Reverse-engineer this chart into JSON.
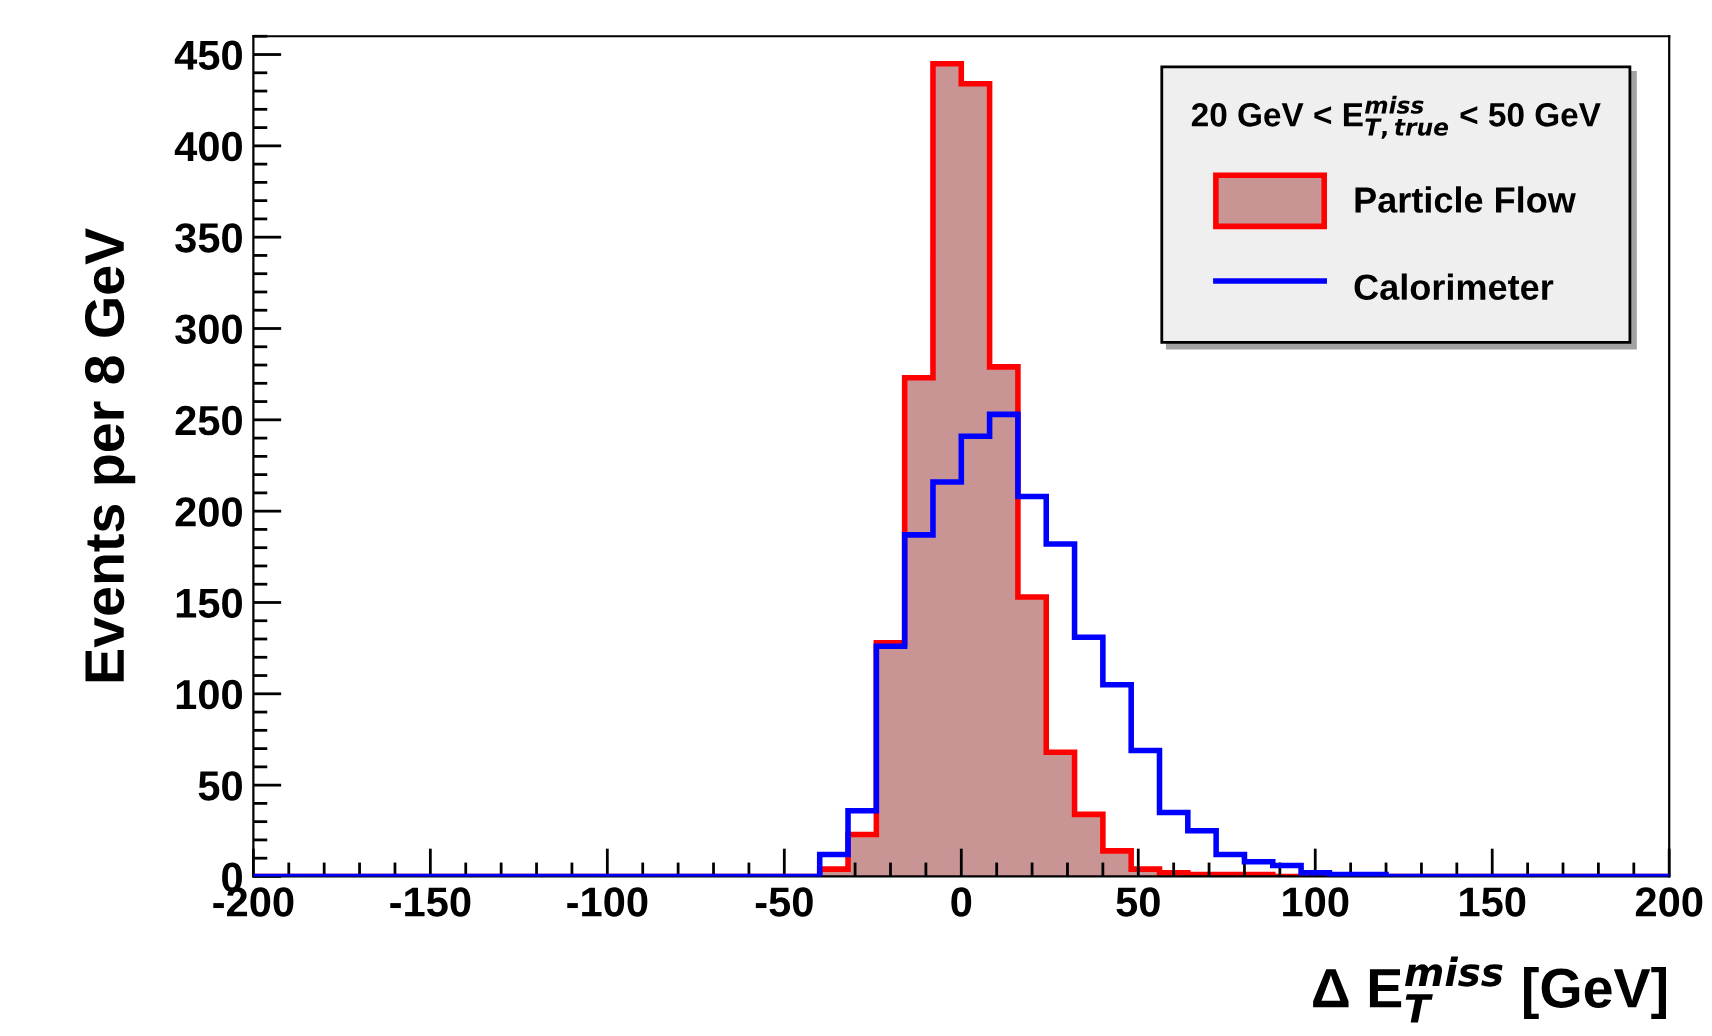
{
  "chart_data": {
    "type": "histogram",
    "xlabel": "Δ E$^{miss}$$_{T}$ [GeV]",
    "ylabel": "Events per 8 GeV",
    "legend_title": "20 GeV < E$^{miss}$$_{T,true}$ < 50 GeV",
    "bins": [
      -200,
      -192,
      -184,
      -176,
      -168,
      -160,
      -152,
      -144,
      -136,
      -128,
      -120,
      -112,
      -104,
      -96,
      -88,
      -80,
      -72,
      -64,
      -56,
      -48,
      -40,
      -32,
      -24,
      -16,
      -8,
      0,
      8,
      16,
      24,
      32,
      40,
      48,
      56,
      64,
      72,
      80,
      88,
      96,
      104,
      112,
      120,
      128,
      136,
      144,
      152,
      160,
      168,
      176,
      184,
      192,
      200
    ],
    "series": [
      {
        "name": "Particle Flow",
        "color": "#c99494",
        "values": [
          0,
          0,
          0,
          0,
          0,
          0,
          0,
          0,
          0,
          0,
          0,
          0,
          0,
          0,
          0,
          0,
          0,
          0,
          0,
          0,
          4,
          23,
          128,
          273,
          445,
          434,
          279,
          153,
          68,
          34,
          14,
          4,
          2,
          1,
          1,
          1,
          0,
          0,
          0,
          0,
          0,
          0,
          0,
          0,
          0,
          0,
          0,
          0,
          0,
          0
        ]
      },
      {
        "name": "Calorimeter",
        "color": "#0000ff",
        "values": [
          0,
          0,
          0,
          0,
          0,
          0,
          0,
          0,
          0,
          0,
          0,
          0,
          0,
          0,
          0,
          0,
          0,
          0,
          0,
          0,
          12,
          36,
          126,
          187,
          216,
          241,
          253,
          208,
          182,
          131,
          105,
          69,
          35,
          25,
          12,
          8,
          6,
          2,
          1,
          1,
          0,
          0,
          0,
          0,
          0,
          0,
          0,
          0,
          0,
          0
        ]
      }
    ],
    "xlim": [
      -200,
      200
    ],
    "xticks": [
      -200,
      -150,
      -100,
      -50,
      0,
      50,
      100,
      150,
      200
    ],
    "ylim": [
      0,
      460
    ],
    "yticks": [
      0,
      50,
      100,
      150,
      200,
      250,
      300,
      350,
      400,
      450
    ],
    "grid": false,
    "legend": "top right"
  }
}
